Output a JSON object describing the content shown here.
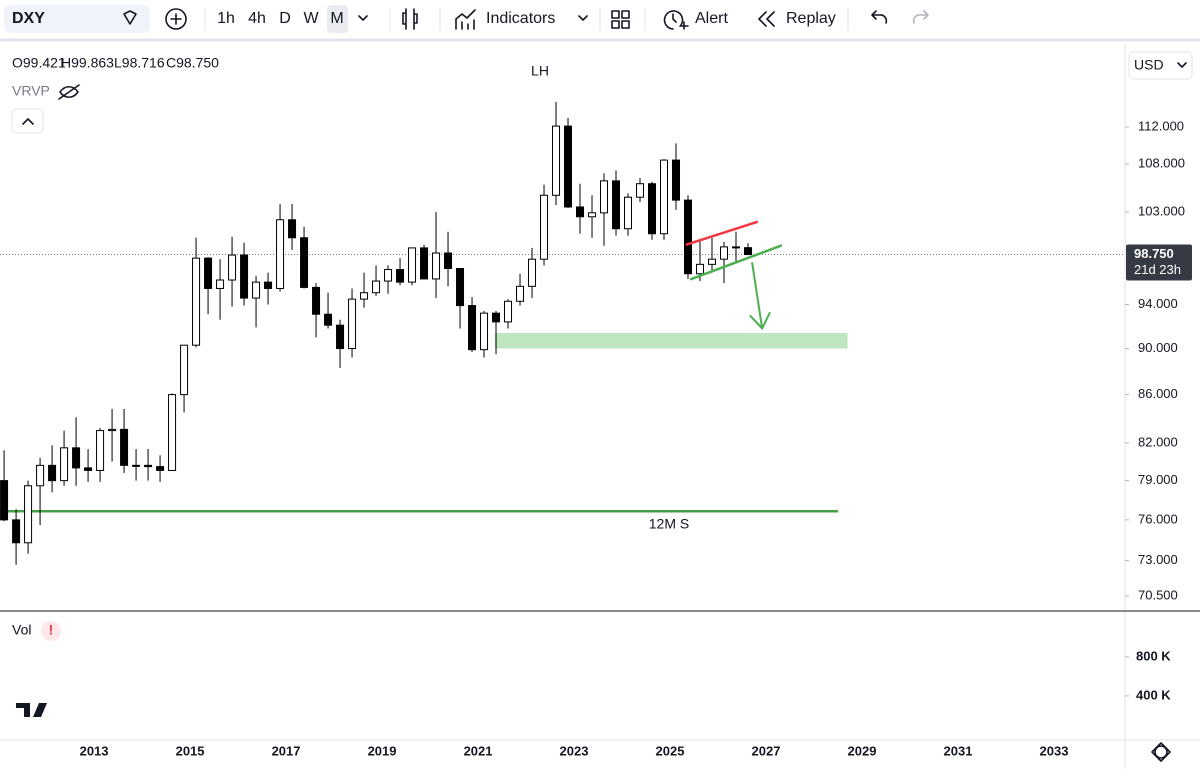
{
  "toolbar": {
    "symbol": "DXY",
    "intervals": [
      "1h",
      "4h",
      "D",
      "W",
      "M"
    ],
    "indicators": "Indicators",
    "alert": "Alert",
    "replay": "Replay"
  },
  "currency": "USD",
  "vrvp": "VRVP",
  "legend_ohlc": [
    "O99.421",
    "H99.863",
    "L98.716",
    "C98.750"
  ],
  "chart_data": {
    "type": "candlestick",
    "log_scale": true,
    "up_color": "#ffffff",
    "down_color": "#000000",
    "xlim": [
      2011.04,
      2034.48
    ],
    "xticks": [
      2013,
      2015,
      2017,
      2019,
      2021,
      2023,
      2025,
      2027,
      2029,
      2031,
      2033
    ],
    "ylim": [
      69.53,
      121.44
    ],
    "yticks": [
      {
        "value": 70.5,
        "label": "70.500"
      },
      {
        "value": 73,
        "label": "73.000"
      },
      {
        "value": 76,
        "label": "76.000"
      },
      {
        "value": 79,
        "label": "79.000"
      },
      {
        "value": 82,
        "label": "82.000"
      },
      {
        "value": 86,
        "label": "86.000"
      },
      {
        "value": 90,
        "label": "90.000"
      },
      {
        "value": 94,
        "label": "94.000"
      },
      {
        "value": 103,
        "label": "103.000"
      },
      {
        "value": 108,
        "label": "108.000"
      },
      {
        "value": 112,
        "label": "112.000"
      }
    ],
    "last_price": {
      "value": 98.75,
      "label": "98.750",
      "countdown": "21d 23h"
    },
    "x": [
      2011,
      2011.25,
      2011.5,
      2011.75,
      2012,
      2012.25,
      2012.5,
      2012.75,
      2013,
      2013.25,
      2013.5,
      2013.75,
      2014,
      2014.25,
      2014.5,
      2014.75,
      2015,
      2015.25,
      2015.5,
      2015.75,
      2016,
      2016.25,
      2016.5,
      2016.75,
      2017,
      2017.25,
      2017.5,
      2017.75,
      2018,
      2018.25,
      2018.5,
      2018.75,
      2019,
      2019.25,
      2019.5,
      2019.75,
      2020,
      2020.25,
      2020.5,
      2020.75,
      2021,
      2021.25,
      2021.5,
      2021.75,
      2022,
      2022.25,
      2022.5,
      2022.75,
      2023,
      2023.25,
      2023.5,
      2023.75,
      2024,
      2024.25,
      2024.5,
      2024.75,
      2025,
      2025.25,
      2025.5,
      2025.75,
      2026,
      2026.25,
      2026.5
    ],
    "open": [
      79.0,
      76.0,
      74.3,
      78.6,
      80.2,
      79.0,
      81.6,
      80.0,
      79.8,
      83.0,
      83.1,
      80.2,
      80.2,
      80.1,
      79.8,
      86.0,
      90.3,
      98.4,
      95.5,
      96.3,
      98.7,
      94.6,
      96.1,
      95.5,
      102.2,
      100.4,
      95.6,
      93.1,
      92.1,
      90.0,
      94.5,
      95.1,
      96.2,
      97.3,
      96.1,
      99.4,
      96.4,
      98.9,
      97.4,
      93.9,
      89.9,
      93.2,
      92.4,
      94.3,
      95.7,
      98.3,
      104.7,
      112.1,
      103.5,
      102.5,
      102.9,
      106.2,
      101.3,
      104.5,
      105.9,
      100.8,
      108.4,
      104.2,
      96.9,
      97.8,
      98.3,
      99.5,
      99.421
    ],
    "high": [
      81.4,
      76.8,
      79.0,
      80.8,
      81.8,
      83.0,
      84.1,
      81.5,
      83.2,
      84.8,
      84.8,
      81.5,
      81.5,
      81.0,
      86.1,
      90.3,
      100.4,
      98.5,
      98.3,
      100.5,
      99.9,
      96.7,
      97.0,
      103.8,
      103.8,
      101.5,
      96.0,
      95.1,
      92.6,
      95.5,
      97.0,
      97.7,
      97.7,
      98.4,
      99.4,
      99.7,
      103.0,
      101.0,
      97.4,
      94.7,
      93.4,
      93.4,
      94.5,
      96.9,
      99.4,
      105.8,
      114.8,
      113.0,
      105.9,
      104.7,
      107.0,
      107.3,
      104.9,
      106.5,
      106.1,
      108.5,
      110.2,
      104.7,
      100.3,
      100.4,
      100.0,
      101.0,
      99.863
    ],
    "low": [
      75.9,
      72.7,
      73.5,
      75.6,
      78.1,
      78.6,
      78.6,
      78.9,
      78.9,
      80.5,
      79.6,
      79.0,
      79.0,
      78.9,
      79.8,
      84.5,
      90.1,
      93.1,
      92.6,
      93.8,
      93.9,
      91.9,
      94.0,
      95.2,
      99.2,
      95.5,
      91.0,
      91.8,
      88.3,
      89.2,
      93.7,
      94.8,
      95.0,
      95.8,
      95.8,
      96.4,
      94.6,
      95.7,
      91.8,
      89.7,
      89.2,
      89.5,
      91.8,
      93.9,
      94.6,
      97.7,
      103.7,
      103.4,
      100.8,
      100.4,
      99.6,
      100.6,
      100.6,
      104.0,
      100.2,
      100.2,
      103.2,
      96.4,
      96.2,
      97.0,
      96.0,
      98.0,
      98.716
    ],
    "close": [
      76.0,
      74.3,
      78.6,
      80.2,
      79.0,
      81.6,
      80.0,
      79.8,
      83.0,
      83.1,
      80.2,
      80.2,
      80.1,
      79.8,
      86.0,
      90.3,
      98.4,
      95.5,
      96.3,
      98.7,
      94.6,
      96.1,
      95.5,
      102.2,
      100.4,
      95.6,
      93.1,
      92.1,
      90.0,
      94.5,
      95.1,
      96.2,
      97.3,
      96.1,
      99.4,
      96.4,
      98.9,
      97.4,
      93.9,
      89.9,
      93.2,
      92.4,
      94.3,
      95.7,
      98.3,
      104.7,
      112.1,
      103.5,
      102.5,
      102.9,
      106.2,
      101.3,
      104.5,
      105.9,
      100.8,
      108.4,
      104.2,
      96.9,
      97.8,
      98.3,
      99.5,
      99.4,
      98.75
    ],
    "annotations": [
      "LH",
      "12M S"
    ],
    "support_line": {
      "value": 76.65,
      "x": [
        2011.04,
        2028.5
      ],
      "color": "#43a047"
    },
    "zone": {
      "low": 90.0,
      "high": 91.4,
      "x": [
        2021.35,
        2028.7
      ],
      "color": "#bfe5c1"
    },
    "trendlines": [
      {
        "x": [
          2025.33,
          2026.83
        ],
        "y": [
          99.7,
          102.0
        ],
        "color": "#f23645"
      },
      {
        "x": [
          2025.42,
          2027.33
        ],
        "y": [
          96.35,
          99.65
        ],
        "color": "#4caf50"
      }
    ],
    "arrow": {
      "x": [
        2026.71,
        2026.92
      ],
      "y": [
        98.0,
        91.8
      ],
      "color": "#4caf50"
    },
    "volume_label": "Vol",
    "volume_ylim": [
      0,
      1260000
    ],
    "volume_yticks": [
      {
        "value": 400000,
        "label": "400 K"
      },
      {
        "value": 800000,
        "label": "800 K"
      }
    ]
  }
}
